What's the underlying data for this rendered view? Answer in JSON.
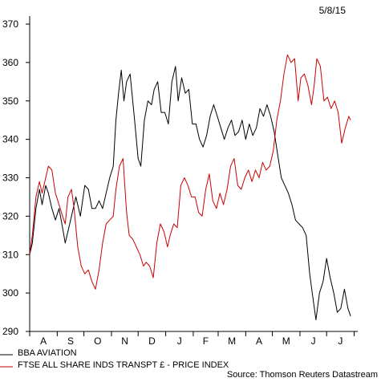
{
  "date_label": "5/8/15",
  "source": "Source: Thomson Reuters Datastream",
  "colors": {
    "bba": "#000000",
    "ftse": "#cc0000",
    "axis": "#000000"
  },
  "chart_data": {
    "type": "line",
    "title": "",
    "xlabel": "",
    "ylabel": "",
    "ylim": [
      290,
      370
    ],
    "yticks": [
      290,
      300,
      310,
      320,
      330,
      340,
      350,
      360,
      370
    ],
    "xlim": [
      "2014-08-01",
      "2015-08-05"
    ],
    "month_labels": [
      "A",
      "S",
      "O",
      "N",
      "D",
      "J",
      "F",
      "M",
      "A",
      "M",
      "J",
      "J"
    ],
    "month_starts": [
      "2014-08-01",
      "2014-09-01",
      "2014-10-01",
      "2014-11-01",
      "2014-12-01",
      "2015-01-01",
      "2015-02-01",
      "2015-03-01",
      "2015-04-01",
      "2015-05-01",
      "2015-06-01",
      "2015-07-01",
      "2015-08-01"
    ],
    "legend_position": "bottom-left",
    "series": [
      {
        "name": "BBA AVIATION",
        "color": "#000000",
        "points": [
          [
            "2014-08-01",
            310
          ],
          [
            "2014-08-04",
            313
          ],
          [
            "2014-08-08",
            322
          ],
          [
            "2014-08-12",
            327
          ],
          [
            "2014-08-15",
            323
          ],
          [
            "2014-08-19",
            328
          ],
          [
            "2014-08-22",
            326
          ],
          [
            "2014-08-26",
            322
          ],
          [
            "2014-08-30",
            319
          ],
          [
            "2014-09-03",
            322
          ],
          [
            "2014-09-07",
            317
          ],
          [
            "2014-09-10",
            313
          ],
          [
            "2014-09-13",
            316
          ],
          [
            "2014-09-17",
            320
          ],
          [
            "2014-09-22",
            325
          ],
          [
            "2014-09-27",
            320
          ],
          [
            "2014-10-02",
            328
          ],
          [
            "2014-10-06",
            327
          ],
          [
            "2014-10-10",
            322
          ],
          [
            "2014-10-14",
            322
          ],
          [
            "2014-10-18",
            324
          ],
          [
            "2014-10-22",
            322
          ],
          [
            "2014-10-26",
            326
          ],
          [
            "2014-10-30",
            330
          ],
          [
            "2014-11-03",
            333
          ],
          [
            "2014-11-06",
            345
          ],
          [
            "2014-11-09",
            352
          ],
          [
            "2014-11-12",
            358
          ],
          [
            "2014-11-15",
            350
          ],
          [
            "2014-11-18",
            355
          ],
          [
            "2014-11-22",
            357
          ],
          [
            "2014-11-27",
            345
          ],
          [
            "2014-12-01",
            335
          ],
          [
            "2014-12-04",
            333
          ],
          [
            "2014-12-08",
            345
          ],
          [
            "2014-12-12",
            350
          ],
          [
            "2014-12-16",
            349
          ],
          [
            "2014-12-19",
            353
          ],
          [
            "2014-12-23",
            355
          ],
          [
            "2014-12-27",
            347
          ],
          [
            "2014-12-31",
            347
          ],
          [
            "2015-01-04",
            344
          ],
          [
            "2015-01-08",
            355
          ],
          [
            "2015-01-12",
            359
          ],
          [
            "2015-01-15",
            350
          ],
          [
            "2015-01-19",
            356
          ],
          [
            "2015-01-23",
            352
          ],
          [
            "2015-01-27",
            353
          ],
          [
            "2015-01-31",
            344
          ],
          [
            "2015-02-04",
            344
          ],
          [
            "2015-02-08",
            340
          ],
          [
            "2015-02-12",
            338
          ],
          [
            "2015-02-16",
            341
          ],
          [
            "2015-02-20",
            346
          ],
          [
            "2015-02-24",
            349
          ],
          [
            "2015-02-28",
            346
          ],
          [
            "2015-03-04",
            343
          ],
          [
            "2015-03-08",
            340
          ],
          [
            "2015-03-12",
            343
          ],
          [
            "2015-03-16",
            345
          ],
          [
            "2015-03-20",
            341
          ],
          [
            "2015-03-24",
            342
          ],
          [
            "2015-03-28",
            345
          ],
          [
            "2015-04-01",
            340
          ],
          [
            "2015-04-05",
            344
          ],
          [
            "2015-04-09",
            341
          ],
          [
            "2015-04-13",
            343
          ],
          [
            "2015-04-17",
            348
          ],
          [
            "2015-04-21",
            346
          ],
          [
            "2015-04-25",
            349
          ],
          [
            "2015-04-29",
            346
          ],
          [
            "2015-05-03",
            342
          ],
          [
            "2015-05-07",
            336
          ],
          [
            "2015-05-11",
            330
          ],
          [
            "2015-05-15",
            328
          ],
          [
            "2015-05-19",
            326
          ],
          [
            "2015-05-23",
            323
          ],
          [
            "2015-05-27",
            319
          ],
          [
            "2015-05-31",
            318
          ],
          [
            "2015-06-04",
            317
          ],
          [
            "2015-06-08",
            315
          ],
          [
            "2015-06-12",
            305
          ],
          [
            "2015-06-16",
            298
          ],
          [
            "2015-06-19",
            293
          ],
          [
            "2015-06-23",
            300
          ],
          [
            "2015-06-27",
            303
          ],
          [
            "2015-07-01",
            309
          ],
          [
            "2015-07-05",
            304
          ],
          [
            "2015-07-09",
            300
          ],
          [
            "2015-07-13",
            295
          ],
          [
            "2015-07-17",
            296
          ],
          [
            "2015-07-21",
            301
          ],
          [
            "2015-07-25",
            296
          ],
          [
            "2015-07-28",
            294
          ]
        ]
      },
      {
        "name": "FTSE ALL SHARE INDS TRANSPT £ - PRICE INDEX",
        "color": "#cc0000",
        "points": [
          [
            "2014-08-01",
            310
          ],
          [
            "2014-08-04",
            315
          ],
          [
            "2014-08-08",
            325
          ],
          [
            "2014-08-12",
            329
          ],
          [
            "2014-08-15",
            326
          ],
          [
            "2014-08-19",
            330
          ],
          [
            "2014-08-22",
            333
          ],
          [
            "2014-08-26",
            332
          ],
          [
            "2014-08-30",
            326
          ],
          [
            "2014-09-03",
            323
          ],
          [
            "2014-09-07",
            320
          ],
          [
            "2014-09-10",
            318
          ],
          [
            "2014-09-13",
            325
          ],
          [
            "2014-09-17",
            327
          ],
          [
            "2014-09-20",
            322
          ],
          [
            "2014-09-24",
            312
          ],
          [
            "2014-09-28",
            307
          ],
          [
            "2014-10-02",
            305
          ],
          [
            "2014-10-06",
            306
          ],
          [
            "2014-10-10",
            303
          ],
          [
            "2014-10-14",
            301
          ],
          [
            "2014-10-18",
            306
          ],
          [
            "2014-10-22",
            313
          ],
          [
            "2014-10-26",
            318
          ],
          [
            "2014-10-30",
            319
          ],
          [
            "2014-11-03",
            320
          ],
          [
            "2014-11-06",
            327
          ],
          [
            "2014-11-10",
            333
          ],
          [
            "2014-11-14",
            335
          ],
          [
            "2014-11-18",
            321
          ],
          [
            "2014-11-21",
            315
          ],
          [
            "2014-11-25",
            314
          ],
          [
            "2014-11-29",
            312
          ],
          [
            "2014-12-03",
            310
          ],
          [
            "2014-12-07",
            307
          ],
          [
            "2014-12-10",
            308
          ],
          [
            "2014-12-14",
            307
          ],
          [
            "2014-12-18",
            304
          ],
          [
            "2014-12-22",
            313
          ],
          [
            "2014-12-26",
            318
          ],
          [
            "2014-12-30",
            316
          ],
          [
            "2015-01-03",
            312
          ],
          [
            "2015-01-06",
            315
          ],
          [
            "2015-01-10",
            318
          ],
          [
            "2015-01-14",
            317
          ],
          [
            "2015-01-18",
            328
          ],
          [
            "2015-01-22",
            330
          ],
          [
            "2015-01-26",
            328
          ],
          [
            "2015-01-30",
            325
          ],
          [
            "2015-02-03",
            325
          ],
          [
            "2015-02-07",
            321
          ],
          [
            "2015-02-11",
            320
          ],
          [
            "2015-02-15",
            327
          ],
          [
            "2015-02-19",
            331
          ],
          [
            "2015-02-23",
            324
          ],
          [
            "2015-02-27",
            322
          ],
          [
            "2015-03-03",
            326
          ],
          [
            "2015-03-07",
            323
          ],
          [
            "2015-03-11",
            327
          ],
          [
            "2015-03-15",
            333
          ],
          [
            "2015-03-19",
            335
          ],
          [
            "2015-03-23",
            328
          ],
          [
            "2015-03-27",
            327
          ],
          [
            "2015-03-31",
            330
          ],
          [
            "2015-04-04",
            332
          ],
          [
            "2015-04-08",
            329
          ],
          [
            "2015-04-12",
            332
          ],
          [
            "2015-04-16",
            330
          ],
          [
            "2015-04-20",
            334
          ],
          [
            "2015-04-24",
            332
          ],
          [
            "2015-04-28",
            333
          ],
          [
            "2015-05-02",
            337
          ],
          [
            "2015-05-06",
            345
          ],
          [
            "2015-05-10",
            350
          ],
          [
            "2015-05-14",
            357
          ],
          [
            "2015-05-18",
            362
          ],
          [
            "2015-05-22",
            360
          ],
          [
            "2015-05-26",
            361
          ],
          [
            "2015-05-30",
            350
          ],
          [
            "2015-06-02",
            356
          ],
          [
            "2015-06-06",
            357
          ],
          [
            "2015-06-10",
            354
          ],
          [
            "2015-06-14",
            349
          ],
          [
            "2015-06-17",
            354
          ],
          [
            "2015-06-20",
            361
          ],
          [
            "2015-06-24",
            359
          ],
          [
            "2015-06-28",
            350
          ],
          [
            "2015-07-02",
            351
          ],
          [
            "2015-07-06",
            348
          ],
          [
            "2015-07-10",
            350
          ],
          [
            "2015-07-14",
            347
          ],
          [
            "2015-07-18",
            339
          ],
          [
            "2015-07-22",
            343
          ],
          [
            "2015-07-26",
            346
          ],
          [
            "2015-07-28",
            345
          ]
        ]
      }
    ]
  }
}
